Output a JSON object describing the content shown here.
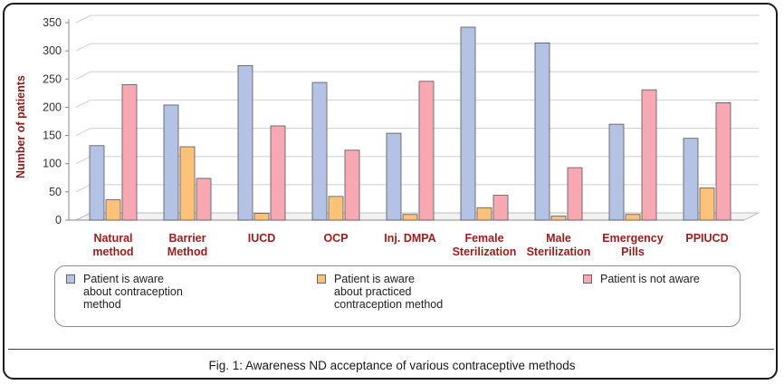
{
  "chart_data": {
    "type": "bar",
    "title": "",
    "xlabel": "",
    "ylabel": "Number of patients",
    "ylim": [
      0,
      350
    ],
    "yticks": [
      0,
      50,
      100,
      150,
      200,
      250,
      300,
      350
    ],
    "grid": true,
    "legend_position": "bottom",
    "categories": [
      "Natural\nmethod",
      "Barrier\nMethod",
      "IUCD",
      "OCP",
      "Inj. DMPA",
      "Female\nSterilization",
      "Male\nSterilization",
      "Emergency\nPills",
      "PPIUCD"
    ],
    "series": [
      {
        "name": "Patient is aware\nabout contraception\nmethod",
        "color": "#b4c2e6",
        "values": [
          132,
          204,
          274,
          244,
          154,
          342,
          314,
          170,
          145
        ]
      },
      {
        "name": "Patient is aware\nabout practiced\ncontraception method",
        "color": "#fcc27a",
        "values": [
          36,
          130,
          12,
          42,
          10,
          22,
          7,
          10,
          57
        ]
      },
      {
        "name": "Patient is not aware",
        "color": "#f7a8b2",
        "values": [
          240,
          74,
          167,
          124,
          246,
          44,
          93,
          231,
          208
        ]
      }
    ]
  },
  "caption": "Fig. 1: Awareness ND acceptance of various contraceptive methods"
}
